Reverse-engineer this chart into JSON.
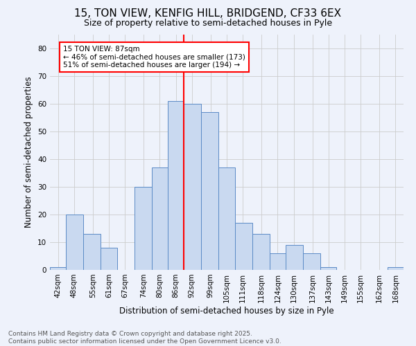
{
  "title": "15, TON VIEW, KENFIG HILL, BRIDGEND, CF33 6EX",
  "subtitle": "Size of property relative to semi-detached houses in Pyle",
  "xlabel": "Distribution of semi-detached houses by size in Pyle",
  "ylabel": "Number of semi-detached properties",
  "bar_labels": [
    "42sqm",
    "48sqm",
    "55sqm",
    "61sqm",
    "67sqm",
    "74sqm",
    "80sqm",
    "86sqm",
    "92sqm",
    "99sqm",
    "105sqm",
    "111sqm",
    "118sqm",
    "124sqm",
    "130sqm",
    "137sqm",
    "143sqm",
    "149sqm",
    "155sqm",
    "162sqm",
    "168sqm"
  ],
  "bar_values": [
    1,
    20,
    13,
    8,
    0,
    30,
    37,
    61,
    60,
    57,
    37,
    17,
    13,
    6,
    9,
    6,
    1,
    0,
    0,
    0,
    1
  ],
  "bar_color": "#c9d9f0",
  "bar_edge_color": "#5a8ac6",
  "annotation_text": "15 TON VIEW: 87sqm\n← 46% of semi-detached houses are smaller (173)\n51% of semi-detached houses are larger (194) →",
  "annotation_box_color": "white",
  "annotation_box_edge": "red",
  "vline_color": "red",
  "ylim": [
    0,
    85
  ],
  "yticks": [
    0,
    10,
    20,
    30,
    40,
    50,
    60,
    70,
    80
  ],
  "grid_color": "#cccccc",
  "background_color": "#eef2fb",
  "footer_text": "Contains HM Land Registry data © Crown copyright and database right 2025.\nContains public sector information licensed under the Open Government Licence v3.0.",
  "title_fontsize": 11,
  "subtitle_fontsize": 9,
  "axis_label_fontsize": 8.5,
  "tick_fontsize": 7.5,
  "annotation_fontsize": 7.5,
  "footer_fontsize": 6.5
}
